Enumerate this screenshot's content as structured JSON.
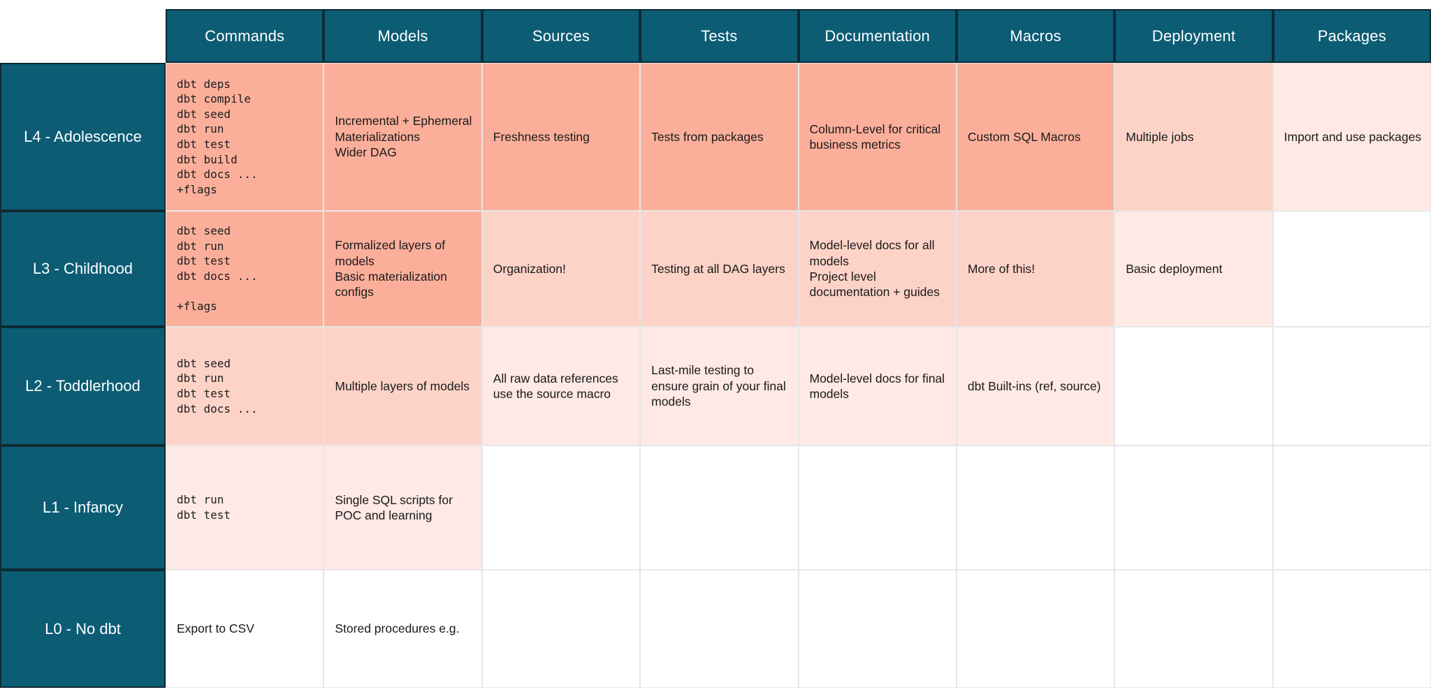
{
  "colors": {
    "teal": "#0C5C74",
    "teal_border": "#0C2B36",
    "label_border": "#0E2A33",
    "grid_line": "#E6E6E6",
    "header_text": "#FFFFFF",
    "cell_text": "#1A1A1A",
    "shade_dark": "#FBAF9B",
    "shade_medium": "#FDD3C8",
    "shade_light": "#FEE9E4",
    "shade_none": "#FFFFFF"
  },
  "table": {
    "column_headers": [
      "Commands",
      "Models",
      "Sources",
      "Tests",
      "Documentation",
      "Macros",
      "Deployment",
      "Packages"
    ],
    "rows": [
      {
        "id": "l4",
        "label": "L4 - Adolescence",
        "shades": [
          "dark",
          "dark",
          "dark",
          "dark",
          "dark",
          "dark",
          "medium",
          "light"
        ],
        "cells": [
          {
            "code": true,
            "text": "dbt deps\ndbt compile\ndbt seed\ndbt run\ndbt test\ndbt build\ndbt docs ...\n+flags"
          },
          {
            "code": false,
            "text": "Incremental + Ephemeral Materializations\nWider DAG"
          },
          {
            "code": false,
            "text": "Freshness testing"
          },
          {
            "code": false,
            "text": "Tests from packages"
          },
          {
            "code": false,
            "text": "Column-Level for critical business metrics"
          },
          {
            "code": false,
            "text": "Custom SQL Macros"
          },
          {
            "code": false,
            "text": "Multiple jobs"
          },
          {
            "code": false,
            "text": "Import and use packages"
          }
        ]
      },
      {
        "id": "l3",
        "label": "L3 - Childhood",
        "shades": [
          "dark",
          "dark",
          "medium",
          "medium",
          "medium",
          "medium",
          "light",
          "none"
        ],
        "cells": [
          {
            "code": true,
            "text": "dbt seed\ndbt run\ndbt test\ndbt docs ...\n\n+flags"
          },
          {
            "code": false,
            "text": "Formalized layers of models\nBasic materialization configs"
          },
          {
            "code": false,
            "text": "Organization!"
          },
          {
            "code": false,
            "text": "Testing at all DAG layers"
          },
          {
            "code": false,
            "text": "Model-level docs for all models\nProject level documentation + guides"
          },
          {
            "code": false,
            "text": "More of this!"
          },
          {
            "code": false,
            "text": "Basic deployment"
          },
          {
            "code": false,
            "text": ""
          }
        ]
      },
      {
        "id": "l2",
        "label": "L2 - Toddlerhood",
        "shades": [
          "medium",
          "medium",
          "light",
          "light",
          "light",
          "light",
          "none",
          "none"
        ],
        "cells": [
          {
            "code": true,
            "text": "dbt seed\ndbt run\ndbt test\ndbt docs ..."
          },
          {
            "code": false,
            "text": "Multiple layers of models"
          },
          {
            "code": false,
            "text": "All raw data references use the source macro"
          },
          {
            "code": false,
            "text": "Last-mile testing to ensure grain of your final models"
          },
          {
            "code": false,
            "text": "Model-level docs for final models"
          },
          {
            "code": false,
            "text": "dbt Built-ins (ref, source)"
          },
          {
            "code": false,
            "text": ""
          },
          {
            "code": false,
            "text": ""
          }
        ]
      },
      {
        "id": "l1",
        "label": "L1 - Infancy",
        "shades": [
          "light",
          "light",
          "none",
          "none",
          "none",
          "none",
          "none",
          "none"
        ],
        "cells": [
          {
            "code": true,
            "text": "dbt run\ndbt test"
          },
          {
            "code": false,
            "text": "Single SQL scripts for POC and learning"
          },
          {
            "code": false,
            "text": ""
          },
          {
            "code": false,
            "text": ""
          },
          {
            "code": false,
            "text": ""
          },
          {
            "code": false,
            "text": ""
          },
          {
            "code": false,
            "text": ""
          },
          {
            "code": false,
            "text": ""
          }
        ]
      },
      {
        "id": "l0",
        "label": "L0 - No dbt",
        "shades": [
          "none",
          "none",
          "none",
          "none",
          "none",
          "none",
          "none",
          "none"
        ],
        "cells": [
          {
            "code": false,
            "text": "Export to CSV"
          },
          {
            "code": false,
            "text": "Stored procedures e.g."
          },
          {
            "code": false,
            "text": ""
          },
          {
            "code": false,
            "text": ""
          },
          {
            "code": false,
            "text": ""
          },
          {
            "code": false,
            "text": ""
          },
          {
            "code": false,
            "text": ""
          },
          {
            "code": false,
            "text": ""
          }
        ]
      }
    ]
  }
}
